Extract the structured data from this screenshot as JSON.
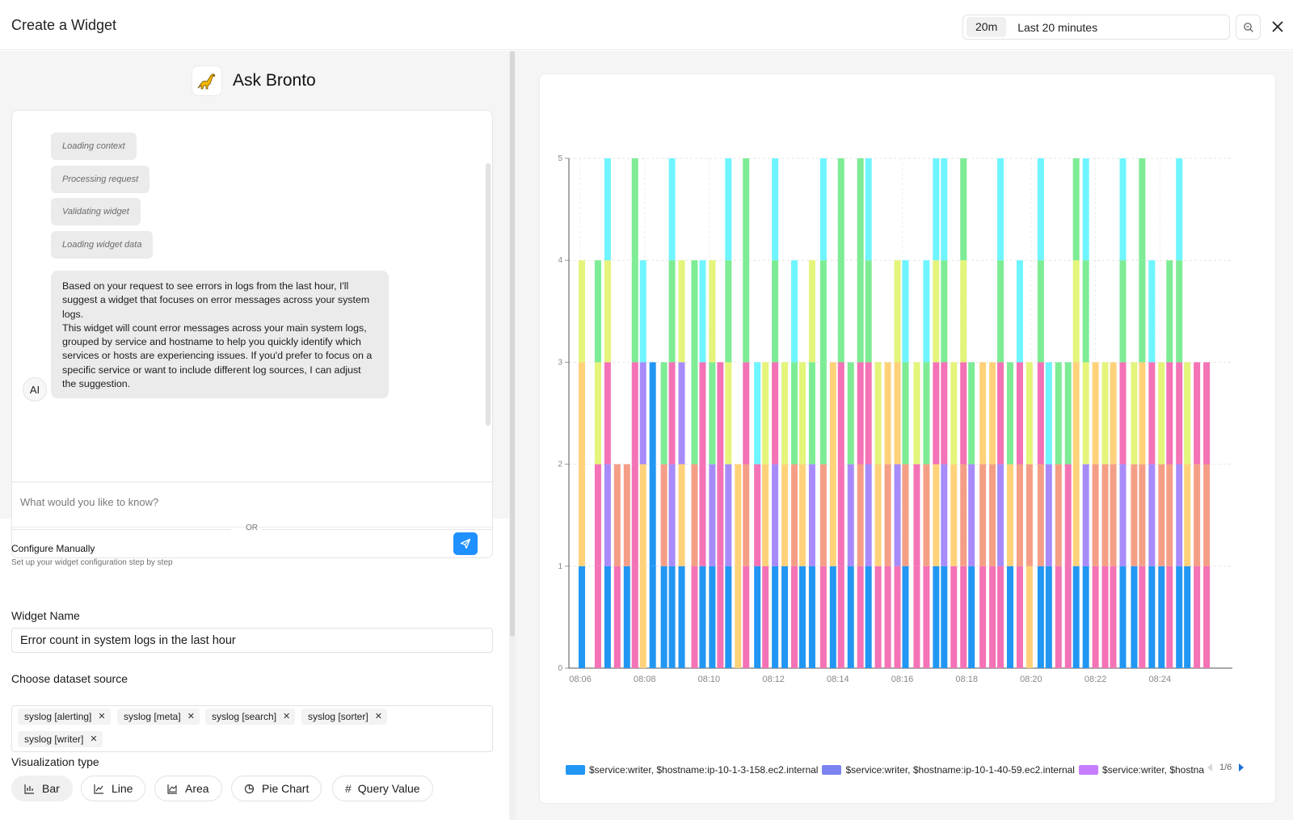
{
  "header": {
    "title": "Create a Widget",
    "time_range_chip": "20m",
    "time_range_label": "Last 20 minutes"
  },
  "assistant": {
    "name": "Ask Bronto",
    "steps": [
      "Loading context",
      "Processing request",
      "Validating widget",
      "Loading widget data"
    ],
    "avatar_label": "AI",
    "message_paragraph_1": "Based on your request to see errors in logs from the last hour, I'll suggest a widget that focuses on error messages across your system logs.",
    "message_paragraph_2": "This widget will count error messages across your main system logs, grouped by service and hostname to help you quickly identify which services or hosts are experiencing issues. If you'd prefer to focus on a specific service or want to include different log sources, I can adjust the suggestion.",
    "input_placeholder": "What would you like to know?",
    "input_value": ""
  },
  "manual": {
    "or_text": "OR",
    "title": "Configure Manually",
    "subtitle": "Set up your widget configuration step by step",
    "widget_name_label": "Widget Name",
    "widget_name_value": "Error count in system logs in the last hour",
    "dataset_label": "Choose dataset source",
    "datasets": [
      "syslog [alerting]",
      "syslog [meta]",
      "syslog [search]",
      "syslog [sorter]",
      "syslog [writer]"
    ],
    "viz_label": "Visualization type",
    "viz_types": [
      {
        "label": "Bar",
        "icon": "bar-chart-icon",
        "active": true
      },
      {
        "label": "Line",
        "icon": "line-chart-icon",
        "active": false
      },
      {
        "label": "Area",
        "icon": "area-chart-icon",
        "active": false
      },
      {
        "label": "Pie Chart",
        "icon": "pie-chart-icon",
        "active": false
      },
      {
        "label": "Query Value",
        "icon": "hash-icon",
        "active": false
      }
    ]
  },
  "legend": {
    "items": [
      {
        "label": "$service:writer, $hostname:ip-10-1-3-158.ec2.internal",
        "color": "#2196f3"
      },
      {
        "label": "$service:writer, $hostname:ip-10-1-40-59.ec2.internal",
        "color": "#7b83f0"
      },
      {
        "label": "$service:writer, $hostnam",
        "color": "#c77dff"
      }
    ],
    "page": "1/6"
  },
  "chart_data": {
    "type": "bar",
    "stacked": true,
    "title": "",
    "xlabel": "",
    "ylabel": "",
    "ylim": [
      0,
      5
    ],
    "yticks": [
      0,
      1,
      2,
      3,
      4,
      5
    ],
    "x_tick_labels": [
      "08:06",
      "08:08",
      "08:10",
      "08:12",
      "08:14",
      "08:16",
      "08:18",
      "08:20",
      "08:22",
      "08:24"
    ],
    "x_range_minutes": [
      0,
      20
    ],
    "palette": [
      "#2196f3",
      "#f472b6",
      "#ffd27a",
      "#a78bfa",
      "#f59e86",
      "#e5f47a",
      "#7dec95",
      "#6ff5ff",
      "#8c92f5",
      "#c77dff"
    ],
    "series_note": "Each bar is one 1-minute bucket sub-column; segments listed bottom-to-top as palette indexes, each segment = 1 error",
    "bars": [
      {
        "t": 0.05,
        "segs": [
          0,
          2,
          2,
          5
        ]
      },
      {
        "t": 0.55,
        "segs": [
          1,
          1,
          5,
          6
        ]
      },
      {
        "t": 0.85,
        "segs": [
          0,
          3,
          1,
          5,
          7
        ]
      },
      {
        "t": 1.15,
        "segs": [
          1,
          4
        ]
      },
      {
        "t": 1.45,
        "segs": [
          0,
          4
        ]
      },
      {
        "t": 1.7,
        "segs": [
          1,
          1,
          1,
          6,
          6
        ]
      },
      {
        "t": 1.95,
        "segs": [
          2,
          2,
          3,
          7
        ]
      },
      {
        "t": 2.25,
        "segs": [
          0,
          0,
          0
        ]
      },
      {
        "t": 2.6,
        "segs": [
          0,
          4,
          6
        ]
      },
      {
        "t": 2.85,
        "segs": [
          0,
          3,
          1,
          6,
          7
        ]
      },
      {
        "t": 3.15,
        "segs": [
          0,
          2,
          3,
          5
        ]
      },
      {
        "t": 3.55,
        "segs": [
          1,
          4,
          6,
          6
        ]
      },
      {
        "t": 3.8,
        "segs": [
          0,
          1,
          1,
          7
        ]
      },
      {
        "t": 4.1,
        "segs": [
          0,
          3,
          6,
          5
        ]
      },
      {
        "t": 4.35,
        "segs": [
          1,
          1,
          1
        ]
      },
      {
        "t": 4.6,
        "segs": [
          0,
          3,
          5,
          6,
          7
        ]
      },
      {
        "t": 4.9,
        "segs": [
          2,
          2
        ]
      },
      {
        "t": 5.15,
        "segs": [
          1,
          4,
          1,
          6,
          6
        ]
      },
      {
        "t": 5.5,
        "segs": [
          0,
          1,
          7
        ]
      },
      {
        "t": 5.75,
        "segs": [
          1,
          2,
          5
        ]
      },
      {
        "t": 6.05,
        "segs": [
          0,
          3,
          1,
          6,
          7
        ]
      },
      {
        "t": 6.35,
        "segs": [
          0,
          2,
          5
        ]
      },
      {
        "t": 6.65,
        "segs": [
          1,
          4,
          6,
          7
        ]
      },
      {
        "t": 6.9,
        "segs": [
          0,
          2,
          5
        ]
      },
      {
        "t": 7.2,
        "segs": [
          0,
          3,
          6,
          5
        ]
      },
      {
        "t": 7.55,
        "segs": [
          1,
          4,
          6,
          6,
          7
        ]
      },
      {
        "t": 7.85,
        "segs": [
          0,
          2,
          2
        ]
      },
      {
        "t": 8.1,
        "segs": [
          1,
          1,
          1,
          6,
          6
        ]
      },
      {
        "t": 8.4,
        "segs": [
          0,
          3,
          6
        ]
      },
      {
        "t": 8.7,
        "segs": [
          1,
          4,
          1,
          6,
          6
        ]
      },
      {
        "t": 8.95,
        "segs": [
          0,
          3,
          1,
          6,
          7
        ]
      },
      {
        "t": 9.25,
        "segs": [
          1,
          2,
          5
        ]
      },
      {
        "t": 9.55,
        "segs": [
          1,
          4,
          2
        ]
      },
      {
        "t": 9.85,
        "segs": [
          1,
          3,
          2,
          5
        ]
      },
      {
        "t": 10.1,
        "segs": [
          0,
          4,
          6,
          7
        ]
      },
      {
        "t": 10.45,
        "segs": [
          1,
          1,
          5
        ]
      },
      {
        "t": 10.75,
        "segs": [
          1,
          4,
          6,
          7
        ]
      },
      {
        "t": 11.05,
        "segs": [
          0,
          2,
          1,
          5,
          7
        ]
      },
      {
        "t": 11.3,
        "segs": [
          0,
          3,
          1,
          6,
          7
        ]
      },
      {
        "t": 11.6,
        "segs": [
          1,
          2,
          5
        ]
      },
      {
        "t": 11.9,
        "segs": [
          1,
          4,
          1,
          5,
          6
        ]
      },
      {
        "t": 12.15,
        "segs": [
          0,
          3,
          6
        ]
      },
      {
        "t": 12.5,
        "segs": [
          1,
          4,
          2
        ]
      },
      {
        "t": 12.8,
        "segs": [
          1,
          4,
          2
        ]
      },
      {
        "t": 13.05,
        "segs": [
          1,
          3,
          1,
          6,
          7
        ]
      },
      {
        "t": 13.35,
        "segs": [
          0,
          2,
          6
        ]
      },
      {
        "t": 13.65,
        "segs": [
          1,
          4,
          1,
          7
        ]
      },
      {
        "t": 13.95,
        "segs": [
          2,
          4,
          5
        ]
      },
      {
        "t": 14.3,
        "segs": [
          0,
          4,
          1,
          6,
          7
        ]
      },
      {
        "t": 14.55,
        "segs": [
          0,
          3,
          7
        ]
      },
      {
        "t": 14.85,
        "segs": [
          1,
          4,
          6
        ]
      },
      {
        "t": 15.15,
        "segs": [
          1,
          1,
          6
        ]
      },
      {
        "t": 15.4,
        "segs": [
          0,
          2,
          2,
          5,
          6
        ]
      },
      {
        "t": 15.7,
        "segs": [
          0,
          3,
          5,
          6,
          7
        ]
      },
      {
        "t": 16.0,
        "segs": [
          1,
          4,
          2
        ]
      },
      {
        "t": 16.3,
        "segs": [
          1,
          4,
          5
        ]
      },
      {
        "t": 16.55,
        "segs": [
          1,
          4,
          2
        ]
      },
      {
        "t": 16.85,
        "segs": [
          0,
          3,
          1,
          6,
          7
        ]
      },
      {
        "t": 17.2,
        "segs": [
          0,
          4,
          5
        ]
      },
      {
        "t": 17.45,
        "segs": [
          1,
          4,
          2,
          6,
          6
        ]
      },
      {
        "t": 17.75,
        "segs": [
          0,
          3,
          1,
          7
        ]
      },
      {
        "t": 18.05,
        "segs": [
          0,
          4,
          5
        ]
      },
      {
        "t": 18.3,
        "segs": [
          1,
          4,
          1,
          6
        ]
      },
      {
        "t": 18.6,
        "segs": [
          0,
          3,
          1,
          6,
          7
        ]
      },
      {
        "t": 18.85,
        "segs": [
          0,
          2,
          5
        ]
      },
      {
        "t": 19.15,
        "segs": [
          1,
          4,
          1
        ]
      },
      {
        "t": 19.45,
        "segs": [
          1,
          4,
          1
        ]
      }
    ]
  }
}
